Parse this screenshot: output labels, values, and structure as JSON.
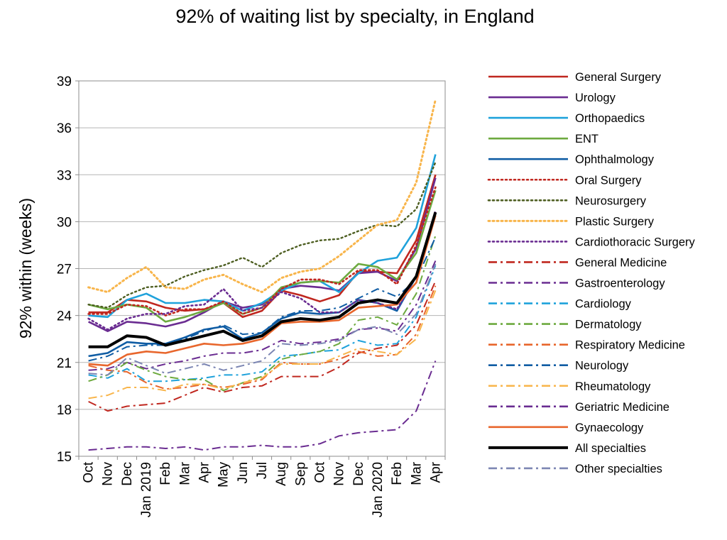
{
  "chart_data": {
    "type": "line",
    "title": "92% of waiting list by specialty, in England",
    "xlabel": "",
    "ylabel": "92% within (weeks)",
    "ylim": [
      15,
      39
    ],
    "yticks": [
      15,
      18,
      21,
      24,
      27,
      30,
      33,
      36,
      39
    ],
    "grid": "horizontal",
    "legend_position": "right",
    "x": [
      "Oct",
      "Nov",
      "Dec",
      "Jan 2019",
      "Feb",
      "Mar",
      "Apr",
      "May",
      "Jun",
      "Jul",
      "Aug",
      "Sep",
      "Oct",
      "Nov",
      "Dec",
      "Jan 2020",
      "Feb",
      "Mar",
      "Apr"
    ],
    "series": [
      {
        "name": "General Surgery",
        "color": "#C0271F",
        "dash": "solid",
        "width": 2.6,
        "values": [
          24.2,
          24.2,
          25.0,
          24.9,
          24.5,
          24.3,
          24.4,
          24.8,
          23.9,
          24.3,
          25.6,
          25.3,
          24.9,
          25.3,
          26.8,
          26.8,
          26.7,
          28.8,
          33.0
        ]
      },
      {
        "name": "Urology",
        "color": "#6A2C91",
        "dash": "solid",
        "width": 2.6,
        "values": [
          23.6,
          23.0,
          23.6,
          23.5,
          23.3,
          23.6,
          24.2,
          24.9,
          24.5,
          24.7,
          25.7,
          25.9,
          25.8,
          25.6,
          26.7,
          26.8,
          26.2,
          28.3,
          32.8
        ]
      },
      {
        "name": "Orthopaedics",
        "color": "#1FA2DB",
        "dash": "solid",
        "width": 2.6,
        "values": [
          24.0,
          23.9,
          25.0,
          25.4,
          24.8,
          24.8,
          25.0,
          24.9,
          24.3,
          24.8,
          25.6,
          26.1,
          26.2,
          25.5,
          26.7,
          27.5,
          27.7,
          29.6,
          34.3
        ]
      },
      {
        "name": "ENT",
        "color": "#6DAA3F",
        "dash": "solid",
        "width": 2.6,
        "values": [
          24.7,
          24.4,
          24.7,
          24.5,
          23.6,
          23.9,
          24.3,
          24.8,
          24.1,
          24.5,
          25.8,
          26.1,
          26.2,
          26.1,
          27.3,
          27.1,
          26.3,
          28.0,
          32.0
        ]
      },
      {
        "name": "Ophthalmology",
        "color": "#105DA4",
        "dash": "solid",
        "width": 2.6,
        "values": [
          21.4,
          21.6,
          22.3,
          22.2,
          22.2,
          22.6,
          23.1,
          23.3,
          22.5,
          22.9,
          23.8,
          24.2,
          24.1,
          24.2,
          25.0,
          24.8,
          24.3,
          26.5,
          30.5
        ]
      },
      {
        "name": "Oral Surgery",
        "color": "#C0271F",
        "dash": "dot",
        "width": 2.6,
        "values": [
          24.1,
          24.1,
          24.7,
          24.6,
          24.0,
          24.4,
          24.4,
          24.9,
          24.1,
          24.5,
          25.7,
          26.3,
          26.3,
          26.0,
          26.9,
          26.9,
          26.0,
          28.5,
          32.2
        ]
      },
      {
        "name": "Neurosurgery",
        "color": "#4D5E21",
        "dash": "dot",
        "width": 2.4,
        "values": [
          24.7,
          24.5,
          25.3,
          25.8,
          25.9,
          26.5,
          26.9,
          27.2,
          27.7,
          27.1,
          28.0,
          28.5,
          28.8,
          28.9,
          29.4,
          29.8,
          29.7,
          30.8,
          33.8
        ]
      },
      {
        "name": "Plastic Surgery",
        "color": "#F8B54B",
        "dash": "dot",
        "width": 3.0,
        "values": [
          25.8,
          25.5,
          26.4,
          27.1,
          25.8,
          25.7,
          26.3,
          26.6,
          26.0,
          25.5,
          26.4,
          26.8,
          27.0,
          27.8,
          28.8,
          29.8,
          30.1,
          32.5,
          37.8
        ]
      },
      {
        "name": "Cardiothoracic Surgery",
        "color": "#6A2C91",
        "dash": "dot",
        "width": 2.6,
        "values": [
          23.8,
          23.1,
          23.8,
          24.1,
          24.1,
          24.6,
          24.7,
          25.7,
          24.3,
          24.5,
          25.5,
          25.1,
          24.2,
          24.2,
          25.0,
          24.8,
          24.4,
          26.5,
          30.7
        ]
      },
      {
        "name": "General Medicine",
        "color": "#C0271F",
        "dash": "dashdot",
        "width": 2.0,
        "values": [
          18.5,
          17.9,
          18.2,
          18.3,
          18.4,
          18.9,
          19.4,
          19.1,
          19.4,
          19.5,
          20.1,
          20.1,
          20.1,
          20.7,
          21.6,
          21.9,
          22.1,
          23.4,
          26.2
        ]
      },
      {
        "name": "Gastroenterology",
        "color": "#6A2C91",
        "dash": "dashdot",
        "width": 2.0,
        "values": [
          20.5,
          20.6,
          21.0,
          20.6,
          20.9,
          21.1,
          21.4,
          21.6,
          21.6,
          21.8,
          22.4,
          22.2,
          22.3,
          22.5,
          23.1,
          23.2,
          23.0,
          24.7,
          27.5
        ]
      },
      {
        "name": "Cardiology",
        "color": "#1FA2DB",
        "dash": "dashdot",
        "width": 2.0,
        "values": [
          20.2,
          20.0,
          20.6,
          19.8,
          19.8,
          19.9,
          20.0,
          20.2,
          20.2,
          20.4,
          21.4,
          21.5,
          21.7,
          21.8,
          22.4,
          22.1,
          22.2,
          23.9,
          27.2
        ]
      },
      {
        "name": "Dermatology",
        "color": "#6DAA3F",
        "dash": "dashdot",
        "width": 2.0,
        "values": [
          19.8,
          20.2,
          21.0,
          20.5,
          20.1,
          19.9,
          19.9,
          19.2,
          19.7,
          20.1,
          21.2,
          21.5,
          21.7,
          22.2,
          23.7,
          23.9,
          23.4,
          25.4,
          29.1
        ]
      },
      {
        "name": "Respiratory Medicine",
        "color": "#E8662C",
        "dash": "dashdot",
        "width": 2.0,
        "values": [
          20.8,
          20.5,
          20.4,
          19.7,
          19.3,
          19.4,
          19.6,
          19.4,
          19.6,
          19.9,
          21.0,
          20.9,
          20.9,
          21.2,
          21.7,
          21.4,
          21.5,
          22.8,
          25.9
        ]
      },
      {
        "name": "Neurology",
        "color": "#105DA4",
        "dash": "dashdot",
        "width": 2.0,
        "values": [
          21.1,
          21.4,
          22.0,
          22.1,
          22.1,
          22.5,
          23.0,
          23.4,
          22.8,
          22.9,
          23.9,
          24.3,
          24.3,
          24.5,
          25.1,
          25.7,
          25.2,
          26.3,
          29.0
        ]
      },
      {
        "name": "Rheumatology",
        "color": "#F8B54B",
        "dash": "dashdot",
        "width": 2.0,
        "values": [
          18.7,
          18.9,
          19.4,
          19.4,
          19.2,
          19.6,
          19.6,
          19.3,
          19.7,
          20.0,
          20.9,
          20.9,
          20.9,
          21.4,
          21.9,
          21.7,
          21.5,
          22.5,
          25.6
        ]
      },
      {
        "name": "Geriatric Medicine",
        "color": "#6A2C91",
        "dash": "dashdot",
        "width": 2.0,
        "values": [
          15.4,
          15.5,
          15.6,
          15.6,
          15.5,
          15.6,
          15.4,
          15.6,
          15.6,
          15.7,
          15.6,
          15.6,
          15.8,
          16.3,
          16.5,
          16.6,
          16.7,
          17.9,
          21.1
        ]
      },
      {
        "name": "Gynaecology",
        "color": "#E8662C",
        "dash": "solid",
        "width": 2.6,
        "values": [
          20.9,
          20.8,
          21.5,
          21.7,
          21.6,
          21.9,
          22.2,
          22.1,
          22.2,
          22.5,
          23.5,
          23.6,
          23.6,
          23.7,
          24.5,
          24.6,
          24.7,
          26.1,
          30.4
        ]
      },
      {
        "name": "All specialties",
        "color": "#000000",
        "dash": "solid",
        "width": 4.0,
        "values": [
          22.0,
          22.0,
          22.7,
          22.6,
          22.1,
          22.4,
          22.7,
          23.0,
          22.4,
          22.7,
          23.6,
          23.8,
          23.7,
          23.9,
          24.8,
          25.0,
          24.8,
          26.5,
          30.6
        ]
      },
      {
        "name": "Other specialties",
        "color": "#7C86B3",
        "dash": "dashdot",
        "width": 2.0,
        "values": [
          20.3,
          20.2,
          21.3,
          20.8,
          20.3,
          20.6,
          20.9,
          20.5,
          20.8,
          21.1,
          22.2,
          22.1,
          22.2,
          22.4,
          23.1,
          23.3,
          22.8,
          24.1,
          27.3
        ]
      }
    ]
  }
}
